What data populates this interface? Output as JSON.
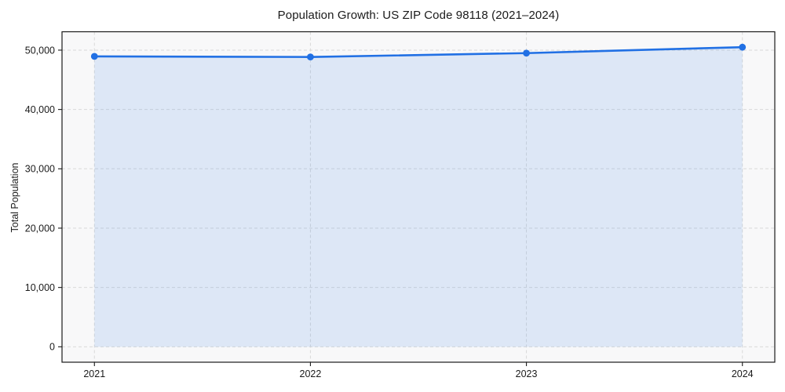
{
  "page": {
    "background": "#ffffff"
  },
  "chart_data": {
    "type": "area",
    "title": "Population Growth: US ZIP Code 98118 (2021–2024)",
    "xlabel": "",
    "ylabel": "Total Population",
    "x": [
      2021,
      2022,
      2023,
      2024
    ],
    "x_tick_labels": [
      "2021",
      "2022",
      "2023",
      "2024"
    ],
    "series": [
      {
        "name": "Total Population",
        "values": [
          48950,
          48850,
          49500,
          50500
        ]
      }
    ],
    "yticks": [
      0,
      10000,
      20000,
      30000,
      40000,
      50000
    ],
    "y_tick_labels": [
      "0",
      "10,000",
      "20,000",
      "30,000",
      "40,000",
      "50,000"
    ],
    "xlim": [
      2020.85,
      2024.15
    ],
    "ylim": [
      -2600,
      53100
    ],
    "baseline_value": 0,
    "grid": true,
    "grid_style": "dashed",
    "legend": "none",
    "colors": {
      "line": "#2170e4",
      "marker": "#2170e4",
      "fill_rgba": "rgba(33,112,228,0.12)",
      "grid": "#d9d9d9",
      "plot_background": "#f8f8f9",
      "spine": "#1a1a1a",
      "text": "#1a1a1a"
    }
  }
}
